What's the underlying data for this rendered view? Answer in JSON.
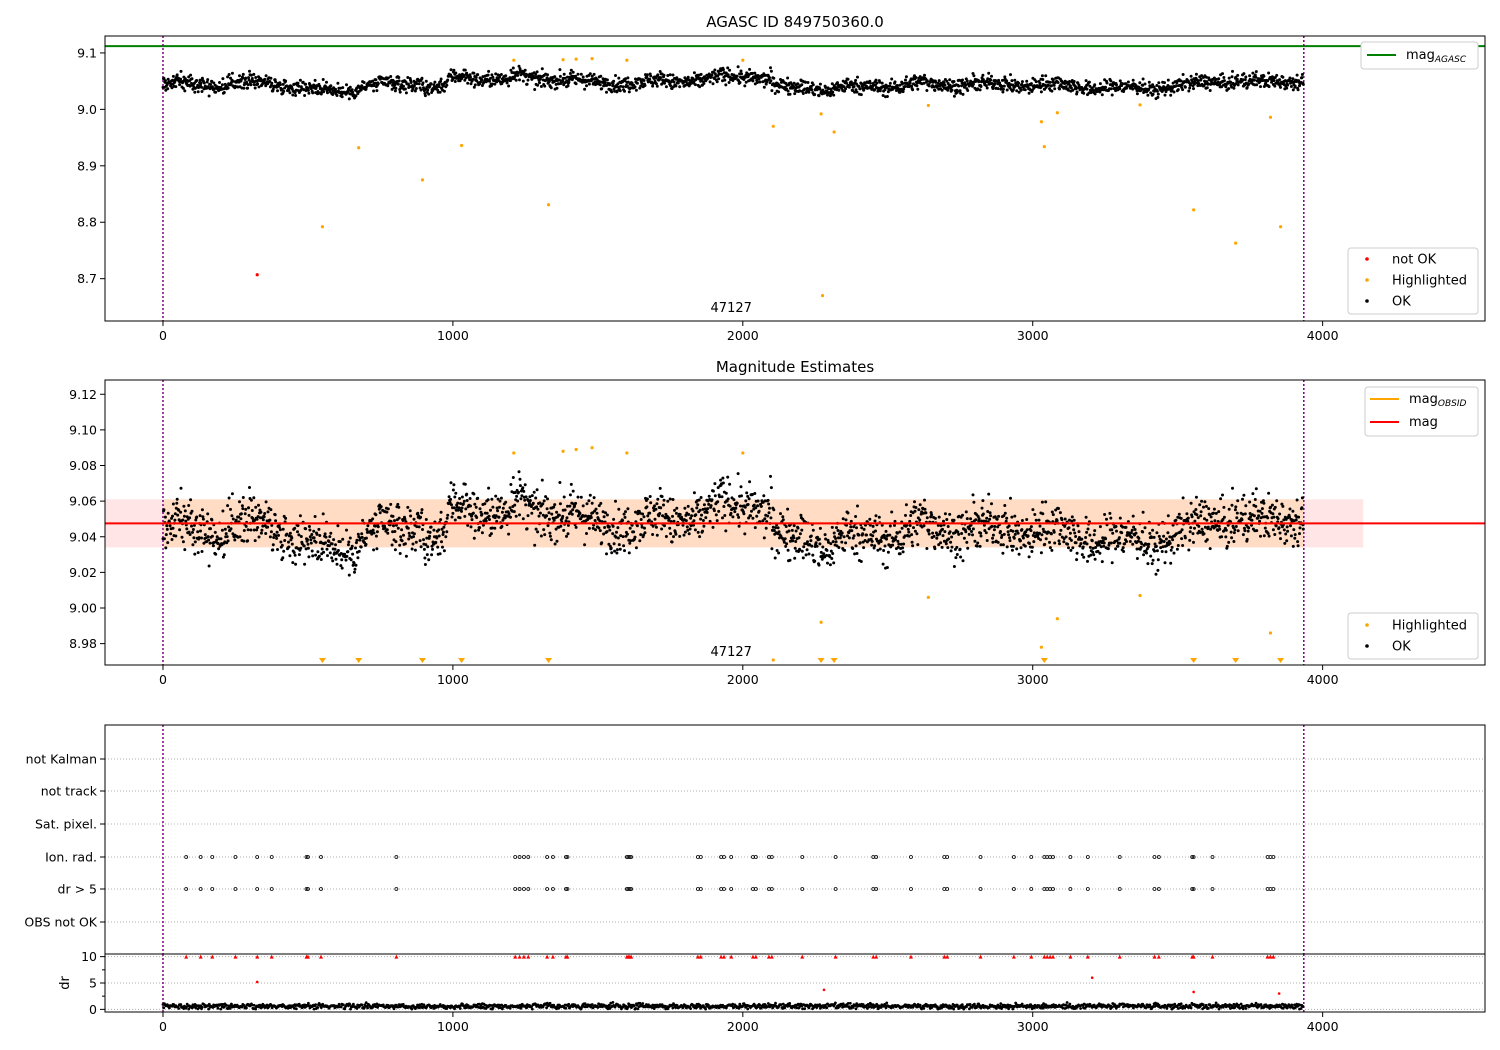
{
  "chart_data": [
    {
      "type": "scatter",
      "title": "AGASC ID 849750360.0",
      "xlim": [
        -200,
        4560
      ],
      "ylim": [
        8.625,
        9.13
      ],
      "x_ticks": [
        0,
        1000,
        2000,
        3000,
        4000
      ],
      "y_ticks": [
        8.7,
        8.8,
        8.9,
        9.0,
        9.1
      ],
      "grid": false,
      "obsid_annotation": "47127",
      "obsid_annotation_x": 1960,
      "reference_lines": [
        {
          "name": "mag_AGASC",
          "legend_main": "mag",
          "legend_sub": "AGASC",
          "value": 9.112,
          "color": "#008000"
        }
      ],
      "vlines": [
        0,
        3935
      ],
      "vline_color": "#800080",
      "legend_lines_position": "top-right",
      "legend_points_position": "bottom-right",
      "series": [
        {
          "name": "not OK",
          "color": "#ff0000",
          "points": [
            [
              325,
              8.707
            ]
          ]
        },
        {
          "name": "Highlighted",
          "color": "#ffa500",
          "points": [
            [
              550,
              8.792
            ],
            [
              675,
              8.932
            ],
            [
              895,
              8.875
            ],
            [
              1030,
              8.936
            ],
            [
              1330,
              8.831
            ],
            [
              1210,
              9.087
            ],
            [
              1380,
              9.088
            ],
            [
              1425,
              9.089
            ],
            [
              1480,
              9.09
            ],
            [
              1600,
              9.087
            ],
            [
              2000,
              9.087
            ],
            [
              2105,
              8.97
            ],
            [
              2270,
              8.992
            ],
            [
              2275,
              8.67
            ],
            [
              2315,
              8.96
            ],
            [
              2640,
              9.007
            ],
            [
              3030,
              8.978
            ],
            [
              3040,
              8.934
            ],
            [
              3085,
              8.994
            ],
            [
              3370,
              9.008
            ],
            [
              3555,
              8.822
            ],
            [
              3700,
              8.763
            ],
            [
              3820,
              8.986
            ],
            [
              3855,
              8.792
            ]
          ]
        },
        {
          "name": "OK",
          "color": "#000000",
          "x_range": [
            0,
            3935
          ],
          "baseline": 9.045,
          "spread": 0.012
        }
      ]
    },
    {
      "type": "scatter",
      "title": "Magnitude Estimates",
      "xlim": [
        -200,
        4560
      ],
      "ylim": [
        8.968,
        9.128
      ],
      "x_ticks": [
        0,
        1000,
        2000,
        3000,
        4000
      ],
      "y_ticks": [
        8.98,
        9.0,
        9.02,
        9.04,
        9.06,
        9.08,
        9.1,
        9.12
      ],
      "grid": false,
      "obsid_annotation": "47127",
      "obsid_annotation_x": 1960,
      "reference_lines": [
        {
          "name": "mag_OBSID",
          "legend_main": "mag",
          "legend_sub": "OBSID",
          "value": 9.0475,
          "color": "#ffa500"
        },
        {
          "name": "mag",
          "legend_main": "mag",
          "legend_sub": "",
          "value": 9.0475,
          "color": "#ff0000"
        }
      ],
      "bands": [
        {
          "x": [
            -200,
            4140
          ],
          "y": [
            9.034,
            9.061
          ],
          "color": "#ff0000",
          "opacity": 0.1
        },
        {
          "x": [
            0,
            3935
          ],
          "y": [
            9.034,
            9.061
          ],
          "color": "#ffa500",
          "opacity": 0.15
        }
      ],
      "vlines": [
        0,
        3935
      ],
      "vline_color": "#800080",
      "legend_lines_position": "top-right",
      "legend_points_position": "bottom-right",
      "markers_below": [
        550,
        675,
        895,
        1030,
        1330,
        2270,
        2315,
        3040,
        3555,
        3700,
        3855
      ],
      "small_marker_x": 2105,
      "series": [
        {
          "name": "Highlighted",
          "color": "#ffa500",
          "points": [
            [
              1210,
              9.087
            ],
            [
              1380,
              9.088
            ],
            [
              1425,
              9.089
            ],
            [
              1480,
              9.09
            ],
            [
              1600,
              9.087
            ],
            [
              2000,
              9.087
            ],
            [
              2270,
              8.992
            ],
            [
              2640,
              9.006
            ],
            [
              3030,
              8.978
            ],
            [
              3085,
              8.994
            ],
            [
              3370,
              9.007
            ],
            [
              3820,
              8.986
            ]
          ]
        },
        {
          "name": "OK",
          "color": "#000000",
          "x_range": [
            0,
            3935
          ],
          "baseline": 9.045,
          "spread": 0.012
        }
      ]
    },
    {
      "type": "scatter",
      "title": "",
      "xlim": [
        -200,
        4560
      ],
      "categories": [
        "not Kalman",
        "not track",
        "Sat. pixel.",
        "Ion. rad.",
        "dr > 5",
        "OBS not OK"
      ],
      "grid": true,
      "vlines": [
        0,
        3935
      ],
      "flag_x": [
        80,
        130,
        170,
        250,
        325,
        375,
        495,
        500,
        545,
        805,
        1215,
        1230,
        1245,
        1260,
        1325,
        1345,
        1390,
        1395,
        1600,
        1605,
        1610,
        1615,
        1845,
        1855,
        1925,
        1935,
        1960,
        2035,
        2045,
        2090,
        2100,
        2205,
        2320,
        2450,
        2460,
        2580,
        2695,
        2705,
        2820,
        2935,
        2995,
        3040,
        3050,
        3060,
        3070,
        3130,
        3190,
        3300,
        3420,
        3435,
        3550,
        3555,
        3620,
        3810,
        3820,
        3830
      ]
    },
    {
      "type": "scatter",
      "title": "",
      "ylabel": "dr",
      "xlim": [
        -200,
        4560
      ],
      "ylim": [
        -0.5,
        10.5
      ],
      "y_ticks": [
        0,
        5,
        10
      ],
      "x_ticks": [
        0,
        1000,
        2000,
        3000,
        4000
      ],
      "grid": true,
      "vlines": [
        0,
        3935
      ],
      "red_points": [
        [
          325,
          5.2
        ],
        [
          2280,
          3.7
        ],
        [
          3205,
          6.0
        ],
        [
          3555,
          3.3
        ],
        [
          3850,
          3.0
        ]
      ],
      "high_points_value": 10,
      "series": [
        {
          "name": "dr",
          "color": "#000000",
          "x_range": [
            0,
            3935
          ],
          "baseline": 0.6,
          "spread": 0.4
        }
      ]
    }
  ]
}
